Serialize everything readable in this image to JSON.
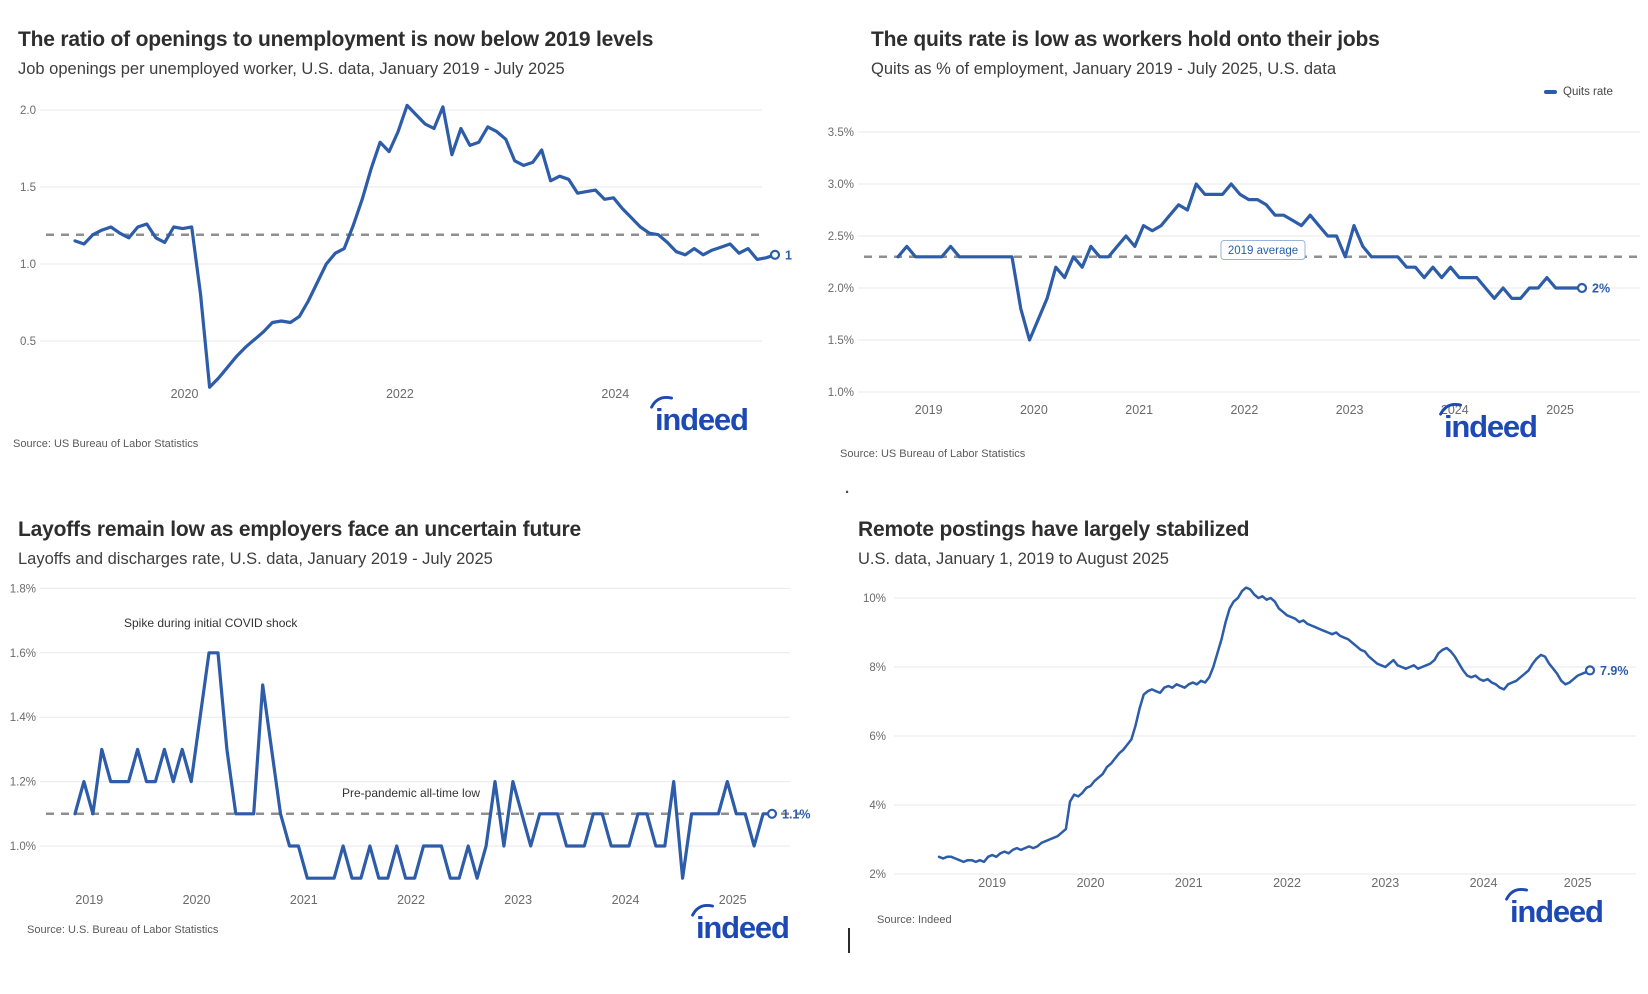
{
  "colors": {
    "line": "#2d5ca8",
    "logo": "#1d49b5",
    "dashed": "#8f8f8f",
    "grid": "#eaeaea"
  },
  "brand": {
    "logo_text": "indeed"
  },
  "artifacts": {
    "dot": ".",
    "cursor": ""
  },
  "charts": [
    {
      "chart_data": {
        "type": "line",
        "title": "The ratio of openings to unemployment is now below 2019 levels",
        "subtitle": "Job openings per unemployed worker, U.S. data, January 2019 - July 2025",
        "source": "Source: US Bureau of Labor Statistics",
        "x_unit": "month",
        "x_range": "January 2019 - July 2025",
        "ylim": [
          0.1,
          2.1
        ],
        "grid": true,
        "y_ticks": [
          {
            "v": 2.0,
            "label": "2.0"
          },
          {
            "v": 1.5,
            "label": "1.5"
          },
          {
            "v": 1.0,
            "label": "1.0"
          },
          {
            "v": 0.5,
            "label": "0.5"
          }
        ],
        "x_labels": [
          {
            "label": "2020",
            "month": 12.2
          },
          {
            "label": "2022",
            "month": 36.2
          },
          {
            "label": "2024",
            "month": 60.2
          }
        ],
        "reference_line": {
          "value": 1.19,
          "meaning": "2019 average level"
        },
        "end_label": "1",
        "values": [
          1.15,
          1.13,
          1.19,
          1.22,
          1.24,
          1.2,
          1.17,
          1.24,
          1.26,
          1.17,
          1.14,
          1.24,
          1.23,
          1.24,
          0.8,
          0.2,
          0.26,
          0.33,
          0.4,
          0.46,
          0.51,
          0.56,
          0.62,
          0.63,
          0.62,
          0.66,
          0.76,
          0.88,
          1.0,
          1.07,
          1.1,
          1.25,
          1.42,
          1.62,
          1.79,
          1.73,
          1.86,
          2.03,
          1.97,
          1.91,
          1.88,
          2.02,
          1.71,
          1.88,
          1.77,
          1.79,
          1.89,
          1.86,
          1.81,
          1.67,
          1.64,
          1.66,
          1.74,
          1.54,
          1.57,
          1.55,
          1.46,
          1.47,
          1.48,
          1.42,
          1.43,
          1.36,
          1.3,
          1.24,
          1.2,
          1.19,
          1.14,
          1.08,
          1.06,
          1.1,
          1.06,
          1.09,
          1.11,
          1.13,
          1.07,
          1.1,
          1.03,
          1.04,
          1.06
        ]
      }
    },
    {
      "chart_data": {
        "type": "line",
        "title": "The quits rate is low as workers hold onto their jobs",
        "subtitle": "Quits as % of employment, January 2019 - July 2025, U.S. data",
        "source": "Source: US Bureau of Labor Statistics",
        "legend": "Quits rate",
        "legend_position": "top-right",
        "x_unit": "month",
        "x_range": "January 2019 - July 2025",
        "ylim": [
          1.0,
          3.6
        ],
        "grid": true,
        "y_ticks": [
          {
            "v": 3.5,
            "label": "3.5%"
          },
          {
            "v": 3.0,
            "label": "3.0%"
          },
          {
            "v": 2.5,
            "label": "2.5%"
          },
          {
            "v": 2.0,
            "label": "2.0%"
          },
          {
            "v": 1.5,
            "label": "1.5%"
          },
          {
            "v": 1.0,
            "label": "1.0%"
          }
        ],
        "x_labels": [
          {
            "label": "2019",
            "month": 3.5
          },
          {
            "label": "2020",
            "month": 15.5
          },
          {
            "label": "2021",
            "month": 27.5
          },
          {
            "label": "2022",
            "month": 39.5
          },
          {
            "label": "2023",
            "month": 51.5
          },
          {
            "label": "2024",
            "month": 63.5
          },
          {
            "label": "2025",
            "month": 75.5
          }
        ],
        "reference_line": {
          "value": 2.3,
          "label": "2019 average"
        },
        "end_label": "2%",
        "values": [
          2.3,
          2.4,
          2.3,
          2.3,
          2.3,
          2.3,
          2.4,
          2.3,
          2.3,
          2.3,
          2.3,
          2.3,
          2.3,
          2.3,
          1.8,
          1.5,
          1.7,
          1.9,
          2.2,
          2.1,
          2.3,
          2.2,
          2.4,
          2.3,
          2.3,
          2.4,
          2.5,
          2.4,
          2.6,
          2.55,
          2.6,
          2.7,
          2.8,
          2.75,
          3.0,
          2.9,
          2.9,
          2.9,
          3.0,
          2.9,
          2.85,
          2.85,
          2.8,
          2.7,
          2.7,
          2.65,
          2.6,
          2.7,
          2.6,
          2.5,
          2.5,
          2.3,
          2.6,
          2.4,
          2.3,
          2.3,
          2.3,
          2.3,
          2.2,
          2.2,
          2.1,
          2.2,
          2.1,
          2.2,
          2.1,
          2.1,
          2.1,
          2.0,
          1.9,
          2.0,
          1.9,
          1.9,
          2.0,
          2.0,
          2.1,
          2.0,
          2.0,
          2.0,
          2.0
        ]
      }
    },
    {
      "chart_data": {
        "type": "line",
        "title": "Layoffs remain low as employers face an uncertain future",
        "subtitle": "Layoffs and discharges rate, U.S. data, January 2019 - July 2025",
        "source": "Source: U.S. Bureau of Labor Statistics",
        "x_unit": "month",
        "x_range": "January 2019 - July 2025",
        "ylim": [
          0.85,
          1.85
        ],
        "grid": true,
        "y_ticks": [
          {
            "v": 1.8,
            "label": "1.8%"
          },
          {
            "v": 1.6,
            "label": "1.6%"
          },
          {
            "v": 1.4,
            "label": "1.4%"
          },
          {
            "v": 1.2,
            "label": "1.2%"
          },
          {
            "v": 1.0,
            "label": "1.0%"
          }
        ],
        "x_labels": [
          {
            "label": "2019",
            "month": 1.6
          },
          {
            "label": "2020",
            "month": 13.6
          },
          {
            "label": "2021",
            "month": 25.6
          },
          {
            "label": "2022",
            "month": 37.6
          },
          {
            "label": "2023",
            "month": 49.6
          },
          {
            "label": "2024",
            "month": 61.6
          },
          {
            "label": "2025",
            "month": 73.6
          }
        ],
        "reference_line": {
          "value": 1.1,
          "meaning": "Pre-pandemic all-time low"
        },
        "annotations": [
          {
            "text": "Spike during initial COVID shock"
          },
          {
            "text": "Pre-pandemic all-time low"
          }
        ],
        "end_label": "1.1%",
        "values": [
          1.1,
          1.2,
          1.1,
          1.3,
          1.2,
          1.2,
          1.2,
          1.3,
          1.2,
          1.2,
          1.3,
          1.2,
          1.3,
          1.2,
          1.4,
          1.6,
          1.6,
          1.3,
          1.1,
          1.1,
          1.1,
          1.5,
          1.3,
          1.1,
          1.0,
          1.0,
          0.9,
          0.9,
          0.9,
          0.9,
          1.0,
          0.9,
          0.9,
          1.0,
          0.9,
          0.9,
          1.0,
          0.9,
          0.9,
          1.0,
          1.0,
          1.0,
          0.9,
          0.9,
          1.0,
          0.9,
          1.0,
          1.2,
          1.0,
          1.2,
          1.1,
          1.0,
          1.1,
          1.1,
          1.1,
          1.0,
          1.0,
          1.0,
          1.1,
          1.1,
          1.0,
          1.0,
          1.0,
          1.1,
          1.1,
          1.0,
          1.0,
          1.2,
          0.9,
          1.1,
          1.1,
          1.1,
          1.1,
          1.2,
          1.1,
          1.1,
          1.0,
          1.1,
          1.1
        ]
      }
    },
    {
      "chart_data": {
        "type": "line",
        "title": "Remote postings have largely stabilized",
        "subtitle": "U.S. data, January 1, 2019 to August 2025",
        "source": "Source: Indeed",
        "x_unit": "half-month",
        "x_range": "January 1, 2019 - August 2025",
        "ylim": [
          2,
          10.5
        ],
        "grid": true,
        "y_ticks": [
          {
            "v": 10,
            "label": "10%"
          },
          {
            "v": 8,
            "label": "8%"
          },
          {
            "v": 6,
            "label": "6%"
          },
          {
            "v": 4,
            "label": "4%"
          },
          {
            "v": 2,
            "label": "2%"
          }
        ],
        "x_labels": [
          {
            "label": "2019",
            "month": 6.5
          },
          {
            "label": "2020",
            "month": 18.5
          },
          {
            "label": "2021",
            "month": 30.5
          },
          {
            "label": "2022",
            "month": 42.5
          },
          {
            "label": "2023",
            "month": 54.5
          },
          {
            "label": "2024",
            "month": 66.5
          },
          {
            "label": "2025",
            "month": 78
          }
        ],
        "end_label": "7.9%",
        "values": [
          2.5,
          2.45,
          2.5,
          2.5,
          2.45,
          2.4,
          2.35,
          2.4,
          2.4,
          2.35,
          2.4,
          2.35,
          2.5,
          2.55,
          2.5,
          2.6,
          2.65,
          2.6,
          2.7,
          2.75,
          2.7,
          2.75,
          2.8,
          2.75,
          2.8,
          2.9,
          2.95,
          3.0,
          3.05,
          3.1,
          3.2,
          3.3,
          4.1,
          4.3,
          4.25,
          4.35,
          4.5,
          4.55,
          4.7,
          4.8,
          4.9,
          5.1,
          5.2,
          5.35,
          5.5,
          5.6,
          5.75,
          5.9,
          6.3,
          6.8,
          7.2,
          7.3,
          7.35,
          7.3,
          7.25,
          7.4,
          7.45,
          7.4,
          7.5,
          7.45,
          7.4,
          7.5,
          7.55,
          7.5,
          7.6,
          7.55,
          7.7,
          8.0,
          8.4,
          8.8,
          9.3,
          9.7,
          9.9,
          10.0,
          10.2,
          10.3,
          10.25,
          10.1,
          10.0,
          10.05,
          9.95,
          10.0,
          9.9,
          9.7,
          9.6,
          9.5,
          9.45,
          9.4,
          9.3,
          9.35,
          9.25,
          9.2,
          9.15,
          9.1,
          9.05,
          9.0,
          8.95,
          9.0,
          8.9,
          8.85,
          8.8,
          8.7,
          8.6,
          8.5,
          8.45,
          8.3,
          8.2,
          8.1,
          8.05,
          8.0,
          8.1,
          8.2,
          8.05,
          8.0,
          7.95,
          8.0,
          8.05,
          7.95,
          8.0,
          8.05,
          8.1,
          8.2,
          8.4,
          8.5,
          8.55,
          8.45,
          8.3,
          8.1,
          7.9,
          7.75,
          7.7,
          7.75,
          7.65,
          7.6,
          7.65,
          7.55,
          7.5,
          7.4,
          7.35,
          7.5,
          7.55,
          7.6,
          7.7,
          7.8,
          7.9,
          8.1,
          8.25,
          8.35,
          8.3,
          8.1,
          7.95,
          7.8,
          7.6,
          7.5,
          7.55,
          7.65,
          7.75,
          7.8,
          7.85,
          7.9
        ]
      }
    }
  ]
}
